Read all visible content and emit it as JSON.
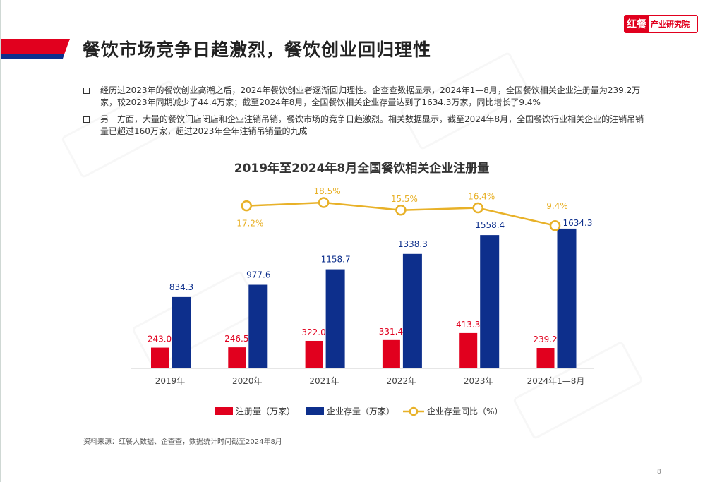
{
  "header": {
    "title": "餐饮市场竞争日趋激烈，餐饮创业回归理性",
    "logo_mark": "红餐",
    "logo_text": "产业研究院"
  },
  "bullets": [
    "经历过2023年的餐饮创业高潮之后，2024年餐饮创业者逐渐回归理性。企查查数据显示，2024年1—8月，全国餐饮相关企业注册量为239.2万家，较2023年同期减少了44.4万家；截至2024年8月，全国餐饮相关企业存量达到了1634.3万家，同比增长了9.4%",
    "另一方面，大量的餐饮门店闭店和企业注销吊销，餐饮市场的竞争日趋激烈。相关数据显示，截至2024年8月，全国餐饮行业相关企业的注销吊销量已超过160万家，超过2023年全年注销吊销量的九成"
  ],
  "chart_data": {
    "type": "bar",
    "title": "2019年至2024年8月全国餐饮相关企业注册量",
    "categories": [
      "2019年",
      "2020年",
      "2021年",
      "2022年",
      "2023年",
      "2024年1—8月"
    ],
    "series": [
      {
        "name": "注册量（万家）",
        "type": "bar",
        "color": "#e1001e",
        "values": [
          243.0,
          246.5,
          322.0,
          331.4,
          413.3,
          239.2
        ],
        "labels": [
          "243.0",
          "246.5",
          "322.0",
          "331.4",
          "413.3",
          "239.2"
        ]
      },
      {
        "name": "企业存量（万家）",
        "type": "bar",
        "color": "#0d2f8c",
        "values": [
          834.3,
          977.6,
          1158.7,
          1338.3,
          1558.4,
          1634.3
        ],
        "labels": [
          "834.3",
          "977.6",
          "1158.7",
          "1338.3",
          "1558.4",
          "1634.3"
        ]
      },
      {
        "name": "企业存量同比（%）",
        "type": "line",
        "color": "#e8b128",
        "values": [
          null,
          17.2,
          18.5,
          15.5,
          16.4,
          9.4
        ],
        "labels": [
          "",
          "17.2%",
          "18.5%",
          "15.5%",
          "16.4%",
          "9.4%"
        ]
      }
    ],
    "legend": "bottom",
    "grid": false
  },
  "footer": {
    "source": "资料来源：红餐大数据、企查查，数据统计时间截至2024年8月",
    "page": "8"
  },
  "watermark": "红餐 产业研究院"
}
